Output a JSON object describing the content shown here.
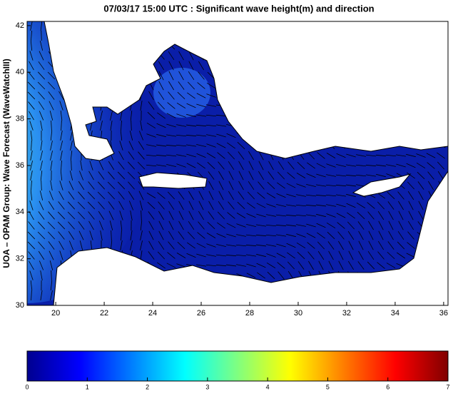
{
  "title": "07/03/17 15:00 UTC : Significant wave height(m) and direction",
  "ylabel": "UOA – OPAM Group: Wave Forecast (WaveWatchIII)",
  "map": {
    "xlim": [
      18.82,
      36.18
    ],
    "ylim": [
      30,
      42.18
    ],
    "xticks": [
      20,
      22,
      24,
      26,
      28,
      30,
      32,
      34,
      36
    ],
    "yticks": [
      30,
      32,
      34,
      36,
      38,
      40,
      42
    ]
  },
  "colorbar": {
    "lim": [
      0,
      7
    ],
    "ticks": [
      0,
      1,
      2,
      3,
      4,
      5,
      6,
      7
    ]
  }
}
